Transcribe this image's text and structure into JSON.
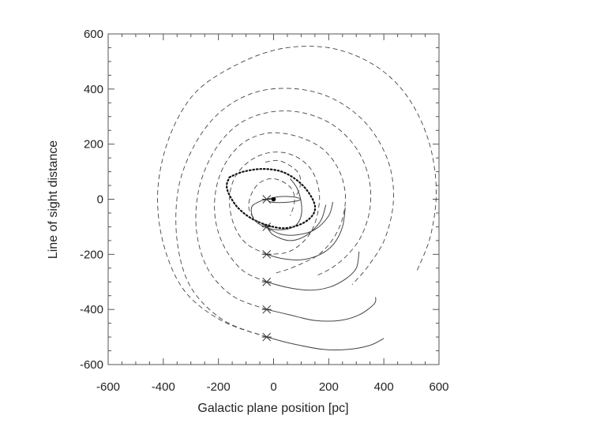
{
  "chart_data": {
    "type": "line",
    "title": "",
    "xlabel": "Galactic plane position [pc]",
    "ylabel": "Line of sight distance",
    "xlim": [
      -600,
      600
    ],
    "ylim": [
      -600,
      600
    ],
    "xticks": [
      -600,
      -400,
      -200,
      0,
      200,
      400,
      600
    ],
    "yticks": [
      -600,
      -400,
      -200,
      0,
      200,
      400,
      600
    ],
    "xtick_labels": [
      "-600",
      "-400",
      "-200",
      "0",
      "200",
      "400",
      "600"
    ],
    "ytick_labels": [
      "-600",
      "-400",
      "-200",
      "0",
      "200",
      "400",
      "600"
    ],
    "grid": false,
    "line_color": "#444444",
    "center_marker": {
      "x": 0,
      "y": 0
    },
    "start_markers": [
      {
        "x": -25,
        "y": 0
      },
      {
        "x": -25,
        "y": -100
      },
      {
        "x": -25,
        "y": -200
      },
      {
        "x": -25,
        "y": -300
      },
      {
        "x": -25,
        "y": -400
      },
      {
        "x": -25,
        "y": -500
      }
    ],
    "series": [
      {
        "style": "dotted",
        "points": [
          [
            -160,
            80
          ],
          [
            -110,
            100
          ],
          [
            -40,
            110
          ],
          [
            30,
            100
          ],
          [
            90,
            65
          ],
          [
            130,
            20
          ],
          [
            150,
            -25
          ],
          [
            140,
            -60
          ],
          [
            100,
            -90
          ],
          [
            40,
            -105
          ],
          [
            -20,
            -95
          ],
          [
            -80,
            -70
          ],
          [
            -130,
            -30
          ],
          [
            -160,
            15
          ],
          [
            -170,
            50
          ],
          [
            -160,
            80
          ]
        ]
      },
      {
        "style": "solid",
        "points": [
          [
            -25,
            0
          ],
          [
            -10,
            -10
          ],
          [
            20,
            -12
          ],
          [
            60,
            -10
          ],
          [
            95,
            -3
          ],
          [
            90,
            5
          ],
          [
            50,
            10
          ],
          [
            10,
            8
          ],
          [
            -25,
            0
          ]
        ]
      },
      {
        "style": "solid",
        "points": [
          [
            -25,
            0
          ],
          [
            -55,
            -10
          ],
          [
            -80,
            -30
          ],
          [
            -70,
            -75
          ],
          [
            -20,
            -105
          ],
          [
            40,
            -110
          ],
          [
            80,
            -95
          ],
          [
            100,
            -60
          ],
          [
            100,
            -10
          ],
          [
            85,
            40
          ],
          [
            60,
            75
          ]
        ]
      },
      {
        "style": "solid",
        "points": [
          [
            -25,
            -100
          ],
          [
            20,
            -125
          ],
          [
            80,
            -130
          ],
          [
            150,
            -110
          ],
          [
            200,
            -60
          ],
          [
            215,
            -10
          ]
        ]
      },
      {
        "style": "solid",
        "points": [
          [
            -25,
            -100
          ],
          [
            0,
            -130
          ],
          [
            60,
            -150
          ],
          [
            120,
            -130
          ],
          [
            170,
            -80
          ],
          [
            190,
            -20
          ]
        ]
      },
      {
        "style": "solid",
        "points": [
          [
            -25,
            -200
          ],
          [
            30,
            -215
          ],
          [
            100,
            -220
          ],
          [
            170,
            -200
          ],
          [
            220,
            -160
          ],
          [
            250,
            -100
          ],
          [
            260,
            -30
          ]
        ]
      },
      {
        "style": "solid",
        "points": [
          [
            -25,
            -300
          ],
          [
            50,
            -320
          ],
          [
            130,
            -330
          ],
          [
            200,
            -320
          ],
          [
            260,
            -290
          ],
          [
            300,
            -250
          ],
          [
            310,
            -190
          ]
        ]
      },
      {
        "style": "solid",
        "points": [
          [
            -25,
            -400
          ],
          [
            60,
            -420
          ],
          [
            150,
            -440
          ],
          [
            240,
            -440
          ],
          [
            310,
            -420
          ],
          [
            365,
            -380
          ],
          [
            370,
            -355
          ]
        ]
      },
      {
        "style": "solid",
        "points": [
          [
            -25,
            -500
          ],
          [
            70,
            -525
          ],
          [
            180,
            -545
          ],
          [
            270,
            -545
          ],
          [
            350,
            -530
          ],
          [
            400,
            -505
          ]
        ]
      },
      {
        "style": "dashed",
        "points": [
          [
            -30,
            135
          ],
          [
            20,
            140
          ],
          [
            70,
            115
          ],
          [
            95,
            85
          ],
          [
            95,
            40
          ],
          [
            80,
            10
          ]
        ]
      },
      {
        "style": "dashed",
        "points": [
          [
            -25,
            -100
          ],
          [
            -70,
            -70
          ],
          [
            -90,
            -30
          ],
          [
            -80,
            20
          ],
          [
            -50,
            60
          ],
          [
            -5,
            75
          ],
          [
            40,
            60
          ],
          [
            70,
            30
          ],
          [
            75,
            -15
          ],
          [
            60,
            -60
          ]
        ]
      },
      {
        "style": "dashed",
        "points": [
          [
            -25,
            -200
          ],
          [
            -100,
            -160
          ],
          [
            -145,
            -90
          ],
          [
            -160,
            0
          ],
          [
            -140,
            80
          ],
          [
            -85,
            140
          ],
          [
            -10,
            170
          ],
          [
            70,
            160
          ],
          [
            135,
            110
          ],
          [
            165,
            30
          ],
          [
            160,
            -50
          ],
          [
            135,
            -120
          ],
          [
            90,
            -170
          ],
          [
            40,
            -195
          ],
          [
            -25,
            -200
          ]
        ]
      },
      {
        "style": "dashed",
        "points": [
          [
            -25,
            -300
          ],
          [
            -110,
            -260
          ],
          [
            -175,
            -180
          ],
          [
            -210,
            -80
          ],
          [
            -210,
            30
          ],
          [
            -175,
            130
          ],
          [
            -110,
            205
          ],
          [
            -20,
            240
          ],
          [
            80,
            230
          ],
          [
            175,
            185
          ],
          [
            235,
            110
          ],
          [
            260,
            20
          ],
          [
            250,
            -70
          ],
          [
            215,
            -145
          ],
          [
            165,
            -200
          ],
          [
            110,
            -230
          ],
          [
            50,
            -255
          ],
          [
            0,
            -270
          ]
        ]
      },
      {
        "style": "dashed",
        "points": [
          [
            -25,
            -400
          ],
          [
            -150,
            -350
          ],
          [
            -240,
            -250
          ],
          [
            -280,
            -110
          ],
          [
            -270,
            40
          ],
          [
            -215,
            175
          ],
          [
            -130,
            270
          ],
          [
            -20,
            315
          ],
          [
            100,
            315
          ],
          [
            215,
            270
          ],
          [
            300,
            185
          ],
          [
            345,
            80
          ],
          [
            350,
            -30
          ],
          [
            320,
            -130
          ],
          [
            270,
            -200
          ],
          [
            210,
            -250
          ],
          [
            150,
            -280
          ]
        ]
      },
      {
        "style": "dashed",
        "points": [
          [
            -25,
            -500
          ],
          [
            -180,
            -440
          ],
          [
            -300,
            -320
          ],
          [
            -350,
            -150
          ],
          [
            -345,
            40
          ],
          [
            -285,
            200
          ],
          [
            -190,
            320
          ],
          [
            -60,
            390
          ],
          [
            90,
            400
          ],
          [
            225,
            360
          ],
          [
            340,
            270
          ],
          [
            415,
            140
          ],
          [
            435,
            0
          ],
          [
            405,
            -140
          ],
          [
            345,
            -240
          ],
          [
            285,
            -310
          ]
        ]
      },
      {
        "style": "dashed",
        "points": [
          [
            -25,
            -500
          ],
          [
            -190,
            -440
          ],
          [
            -325,
            -330
          ],
          [
            -400,
            -160
          ],
          [
            -420,
            30
          ],
          [
            -380,
            220
          ],
          [
            -290,
            380
          ],
          [
            -150,
            480
          ],
          [
            20,
            545
          ],
          [
            200,
            550
          ],
          [
            360,
            490
          ],
          [
            480,
            380
          ],
          [
            560,
            220
          ],
          [
            590,
            40
          ],
          [
            570,
            -130
          ],
          [
            520,
            -260
          ]
        ]
      }
    ]
  }
}
